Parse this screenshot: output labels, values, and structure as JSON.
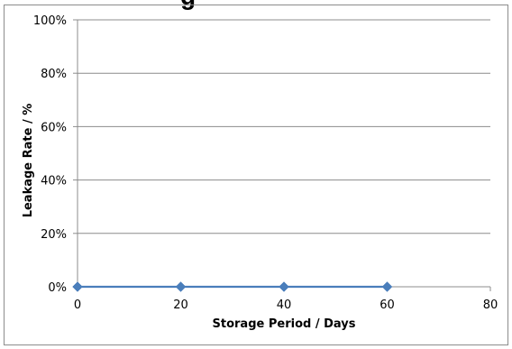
{
  "chart_data": {
    "type": "line",
    "title": "g",
    "xlabel": "Storage Period / Days",
    "ylabel": "Leakage Rate / %",
    "x_ticks": [
      "0",
      "20",
      "40",
      "60",
      "80"
    ],
    "y_ticks": [
      "0%",
      "20%",
      "40%",
      "60%",
      "80%",
      "100%"
    ],
    "xlim": [
      0,
      80
    ],
    "ylim": [
      0,
      100
    ],
    "grid": "horizontal",
    "legend": "none",
    "series": [
      {
        "x": [
          0,
          20,
          40,
          60
        ],
        "values": [
          0,
          0,
          0,
          0
        ],
        "color": "#4a7ebb",
        "marker": "diamond"
      }
    ]
  }
}
